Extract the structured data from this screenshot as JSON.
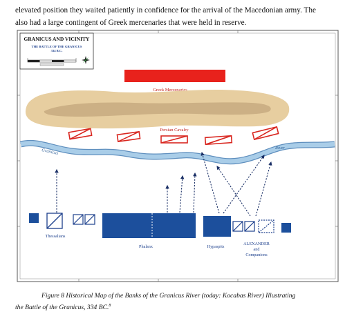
{
  "intro": {
    "line1": "elevated position they waited patiently in confidence for the arrival of the Macedonian army. The",
    "line2": "also had a large contingent of Greek mercenaries that were held in reserve."
  },
  "map": {
    "title_box": {
      "title": "GRANICUS AND VICINITY",
      "subtitle1": "THE BATTLE OF THE GRANICUS",
      "subtitle2": "334 B.C."
    },
    "labels": {
      "greek_mercenaries": "Greek Mercenaries",
      "persian_cavalry": "Persian Cavalry",
      "river_left": "Granicus",
      "river_right": "River",
      "thessalians": "Thessalians",
      "phalanx": "Phalanx",
      "hypaspists": "Hypaspits",
      "alexander_line1": "ALEXANDER",
      "alexander_line2": "and",
      "alexander_line3": "Companions"
    },
    "colors": {
      "greek_red": "#e8221c",
      "persian_red": "#d9261f",
      "macedonian_blue": "#1c4f9c",
      "river": "#9cc3e0",
      "hill": "#e6cb9b",
      "ridge": "#c9ad82"
    }
  },
  "caption": {
    "text": "Figure 8 Historical Map of the Banks of the Granicus River (today: Kocabas River) Illustrating",
    "text2": "the Battle of the Granicus, 334 BC.",
    "footnote": "8"
  }
}
